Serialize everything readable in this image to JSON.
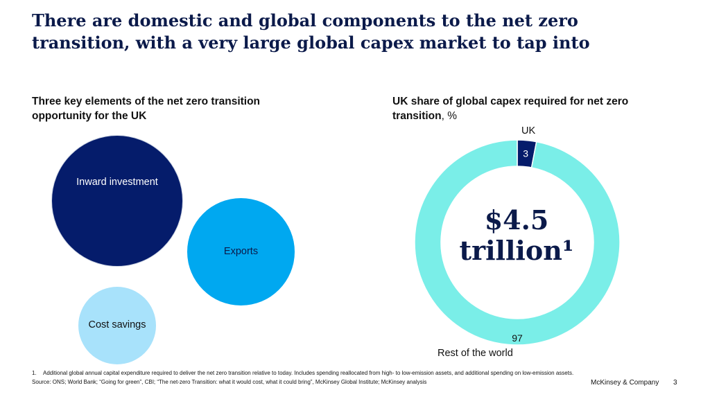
{
  "title": "There are domestic and global components to the net zero transition, with a very large global capex market to tap into",
  "left_panel": {
    "subtitle": "Three key elements of the net zero transition opportunity for the UK",
    "bubbles": [
      {
        "label": "Inward investment",
        "color": "#051c6b"
      },
      {
        "label": "Exports",
        "color": "#00a8f0"
      },
      {
        "label": "Cost savings",
        "color": "#a8e2fb"
      }
    ]
  },
  "right_panel": {
    "subtitle_bold": "UK share of global capex required for net zero transition",
    "subtitle_unit": ", %",
    "center_line1": "$4.5",
    "center_line2": "trillion¹"
  },
  "chart_data": {
    "type": "pie",
    "variant": "donut",
    "unit": "%",
    "total": "$4.5 trillion",
    "slices": [
      {
        "label": "UK",
        "value": 3,
        "color": "#051c6b"
      },
      {
        "label": "Rest of the world",
        "value": 97,
        "color": "#7aeee8"
      }
    ],
    "title": ""
  },
  "footer": {
    "footnote_num": "1.",
    "footnote": "Additional global annual capital expenditure required to deliver the net zero transition relative to today. Includes spending reallocated from high- to low-emission assets, and additional spending on low-emission assets.",
    "source": "Source: ONS; World Bank; “Going for green”, CBI; “The net-zero Transition: what it would cost, what it could bring”, McKinsey Global Institute; McKinsey analysis",
    "brand": "McKinsey & Company",
    "page": "3"
  }
}
